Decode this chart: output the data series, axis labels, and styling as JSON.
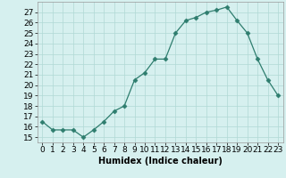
{
  "x": [
    0,
    1,
    2,
    3,
    4,
    5,
    6,
    7,
    8,
    9,
    10,
    11,
    12,
    13,
    14,
    15,
    16,
    17,
    18,
    19,
    20,
    21,
    22,
    23
  ],
  "y": [
    16.5,
    15.7,
    15.7,
    15.7,
    15.0,
    15.7,
    16.5,
    17.5,
    18.0,
    20.5,
    21.2,
    22.5,
    22.5,
    25.0,
    26.2,
    26.5,
    27.0,
    27.2,
    27.5,
    26.2,
    25.0,
    22.5,
    20.5,
    19.0
  ],
  "line_color": "#2e7d6e",
  "marker": "D",
  "marker_size": 2.5,
  "bg_color": "#d6f0ef",
  "grid_color": "#b0d8d5",
  "xlabel": "Humidex (Indice chaleur)",
  "ylim": [
    14.5,
    28.0
  ],
  "xlim": [
    -0.5,
    23.5
  ],
  "yticks": [
    15,
    16,
    17,
    18,
    19,
    20,
    21,
    22,
    23,
    24,
    25,
    26,
    27
  ],
  "xticks": [
    0,
    1,
    2,
    3,
    4,
    5,
    6,
    7,
    8,
    9,
    10,
    11,
    12,
    13,
    14,
    15,
    16,
    17,
    18,
    19,
    20,
    21,
    22,
    23
  ],
  "xtick_labels": [
    "0",
    "1",
    "2",
    "3",
    "4",
    "5",
    "6",
    "7",
    "8",
    "9",
    "10",
    "11",
    "12",
    "13",
    "14",
    "15",
    "16",
    "17",
    "18",
    "19",
    "20",
    "21",
    "22",
    "23"
  ],
  "axis_label_fontsize": 7,
  "tick_fontsize": 6.5
}
